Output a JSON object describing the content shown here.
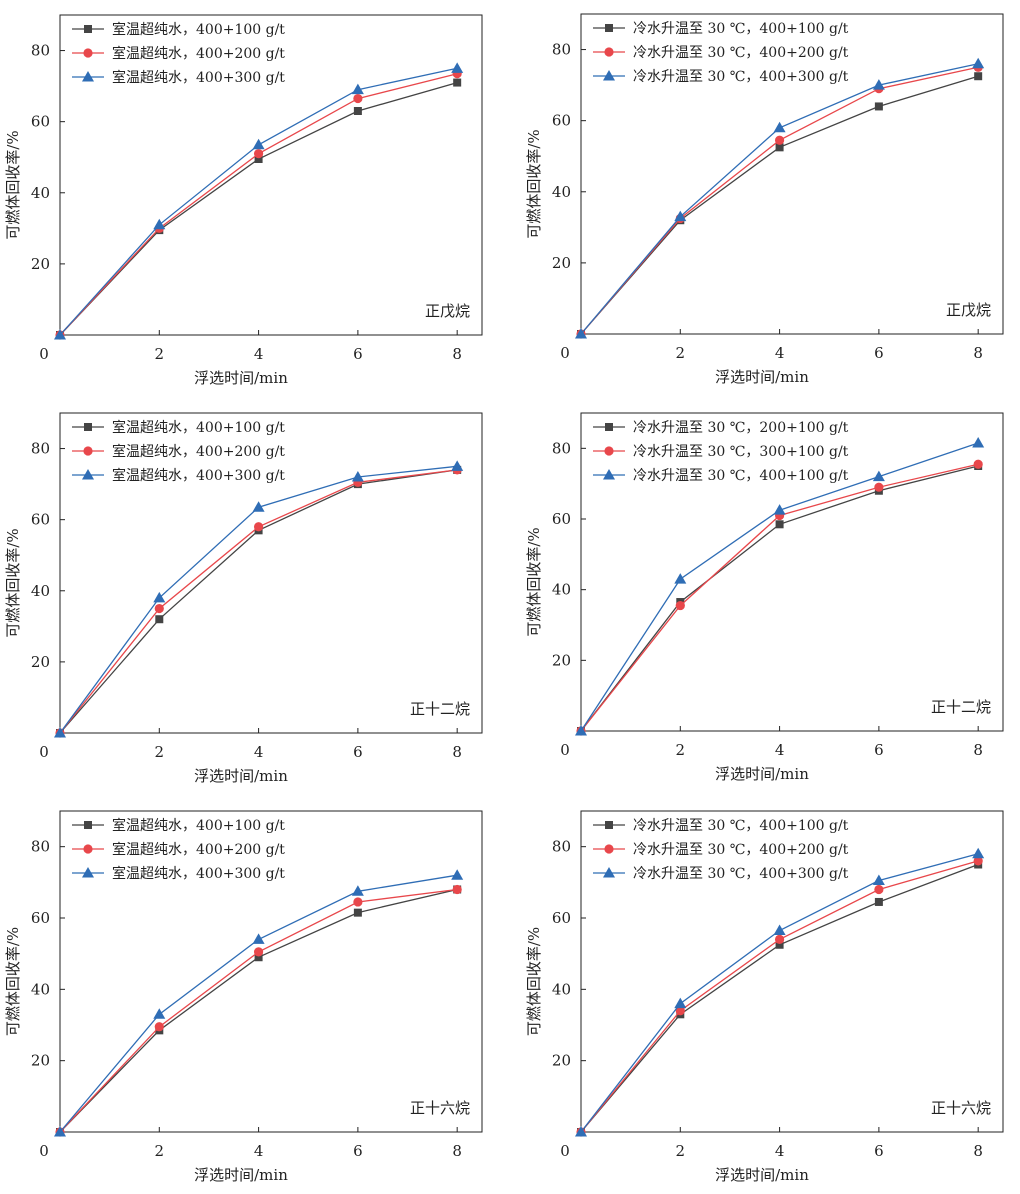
{
  "chart_data": [
    {
      "type": "line",
      "annotation": "正戊烷",
      "x": [
        0,
        2,
        4,
        6,
        8
      ],
      "xticks": [
        "2",
        "4",
        "6",
        "8"
      ],
      "yticks": [
        "20",
        "40",
        "60",
        "80"
      ],
      "origin_label": "0",
      "xlabel": "浮选时间/min",
      "ylabel": "可燃体回收率/%",
      "xlim": [
        0,
        8.5
      ],
      "ylim": [
        0,
        90
      ],
      "legend_position": "top-left",
      "series": [
        {
          "name": "室温超纯水，400+100 g/t",
          "color": "#444444",
          "marker": "square",
          "values": [
            0,
            29.5,
            49.5,
            63,
            71
          ]
        },
        {
          "name": "室温超纯水，400+200 g/t",
          "color": "#e8474b",
          "marker": "circle",
          "values": [
            0,
            30,
            51,
            66.5,
            73.5
          ]
        },
        {
          "name": "室温超纯水，400+300 g/t",
          "color": "#2f6db5",
          "marker": "triangle",
          "values": [
            0,
            31,
            53.5,
            69,
            75
          ]
        }
      ]
    },
    {
      "type": "line",
      "annotation": "正戊烷",
      "x": [
        0,
        2,
        4,
        6,
        8
      ],
      "xticks": [
        "2",
        "4",
        "6",
        "8"
      ],
      "yticks": [
        "20",
        "40",
        "60",
        "80"
      ],
      "origin_label": "0",
      "xlabel": "浮选时间/min",
      "ylabel": "可燃体回收率/%",
      "xlim": [
        0,
        8.5
      ],
      "ylim": [
        0,
        90
      ],
      "legend_position": "top-left",
      "series": [
        {
          "name": "冷水升温至 30 ℃，400+100 g/t",
          "color": "#444444",
          "marker": "square",
          "values": [
            0,
            32,
            52.5,
            64,
            72.5
          ]
        },
        {
          "name": "冷水升温至 30 ℃，400+200 g/t",
          "color": "#e8474b",
          "marker": "circle",
          "values": [
            0,
            32.5,
            54.5,
            69,
            75
          ]
        },
        {
          "name": "冷水升温至 30 ℃，400+300 g/t",
          "color": "#2f6db5",
          "marker": "triangle",
          "values": [
            0,
            33,
            58,
            70,
            76
          ]
        }
      ]
    },
    {
      "type": "line",
      "annotation": "正十二烷",
      "x": [
        0,
        2,
        4,
        6,
        8
      ],
      "xticks": [
        "2",
        "4",
        "6",
        "8"
      ],
      "yticks": [
        "20",
        "40",
        "60",
        "80"
      ],
      "origin_label": "0",
      "xlabel": "浮选时间/min",
      "ylabel": "可燃体回收率/%",
      "xlim": [
        0,
        8.5
      ],
      "ylim": [
        0,
        90
      ],
      "legend_position": "top-left",
      "series": [
        {
          "name": "室温超纯水，400+100 g/t",
          "color": "#444444",
          "marker": "square",
          "values": [
            0,
            32,
            57,
            70,
            74
          ]
        },
        {
          "name": "室温超纯水，400+200 g/t",
          "color": "#e8474b",
          "marker": "circle",
          "values": [
            0,
            35,
            58,
            70.5,
            74
          ]
        },
        {
          "name": "室温超纯水，400+300 g/t",
          "color": "#2f6db5",
          "marker": "triangle",
          "values": [
            0,
            38,
            63.5,
            72,
            75
          ]
        }
      ]
    },
    {
      "type": "line",
      "annotation": "正十二烷",
      "x": [
        0,
        2,
        4,
        6,
        8
      ],
      "xticks": [
        "2",
        "4",
        "6",
        "8"
      ],
      "yticks": [
        "20",
        "40",
        "60",
        "80"
      ],
      "origin_label": "0",
      "xlabel": "浮选时间/min",
      "ylabel": "可燃体回收率/%",
      "xlim": [
        0,
        8.5
      ],
      "ylim": [
        0,
        90
      ],
      "legend_position": "top-left",
      "series": [
        {
          "name": "冷水升温至 30 ℃，200+100 g/t",
          "color": "#444444",
          "marker": "square",
          "values": [
            0,
            36.5,
            58.5,
            68,
            75
          ]
        },
        {
          "name": "冷水升温至 30 ℃，300+100 g/t",
          "color": "#e8474b",
          "marker": "circle",
          "values": [
            0,
            35.5,
            61,
            69,
            75.5
          ]
        },
        {
          "name": "冷水升温至 30 ℃，400+100 g/t",
          "color": "#2f6db5",
          "marker": "triangle",
          "values": [
            0,
            43,
            62.5,
            72,
            81.5
          ]
        }
      ]
    },
    {
      "type": "line",
      "annotation": "正十六烷",
      "x": [
        0,
        2,
        4,
        6,
        8
      ],
      "xticks": [
        "2",
        "4",
        "6",
        "8"
      ],
      "yticks": [
        "20",
        "40",
        "60",
        "80"
      ],
      "origin_label": "0",
      "xlabel": "浮选时间/min",
      "ylabel": "可燃体回收率/%",
      "xlim": [
        0,
        8.5
      ],
      "ylim": [
        0,
        90
      ],
      "legend_position": "top-left",
      "series": [
        {
          "name": "室温超纯水，400+100 g/t",
          "color": "#444444",
          "marker": "square",
          "values": [
            0,
            28.5,
            49,
            61.5,
            68
          ]
        },
        {
          "name": "室温超纯水，400+200 g/t",
          "color": "#e8474b",
          "marker": "circle",
          "values": [
            0,
            29.5,
            50.5,
            64.5,
            68
          ]
        },
        {
          "name": "室温超纯水，400+300 g/t",
          "color": "#2f6db5",
          "marker": "triangle",
          "values": [
            0,
            33,
            54,
            67.5,
            72
          ]
        }
      ]
    },
    {
      "type": "line",
      "annotation": "正十六烷",
      "x": [
        0,
        2,
        4,
        6,
        8
      ],
      "xticks": [
        "2",
        "4",
        "6",
        "8"
      ],
      "yticks": [
        "20",
        "40",
        "60",
        "80"
      ],
      "origin_label": "0",
      "xlabel": "浮选时间/min",
      "ylabel": "可燃体回收率/%",
      "xlim": [
        0,
        8.5
      ],
      "ylim": [
        0,
        90
      ],
      "legend_position": "top-left",
      "series": [
        {
          "name": "冷水升温至 30 ℃，400+100 g/t",
          "color": "#444444",
          "marker": "square",
          "values": [
            0,
            33,
            52.5,
            64.5,
            75
          ]
        },
        {
          "name": "冷水升温至 30 ℃，400+200 g/t",
          "color": "#e8474b",
          "marker": "circle",
          "values": [
            0,
            34,
            54,
            68,
            76
          ]
        },
        {
          "name": "冷水升温至 30 ℃，400+300 g/t",
          "color": "#2f6db5",
          "marker": "triangle",
          "values": [
            0,
            36,
            56.5,
            70.5,
            78
          ]
        }
      ]
    }
  ]
}
